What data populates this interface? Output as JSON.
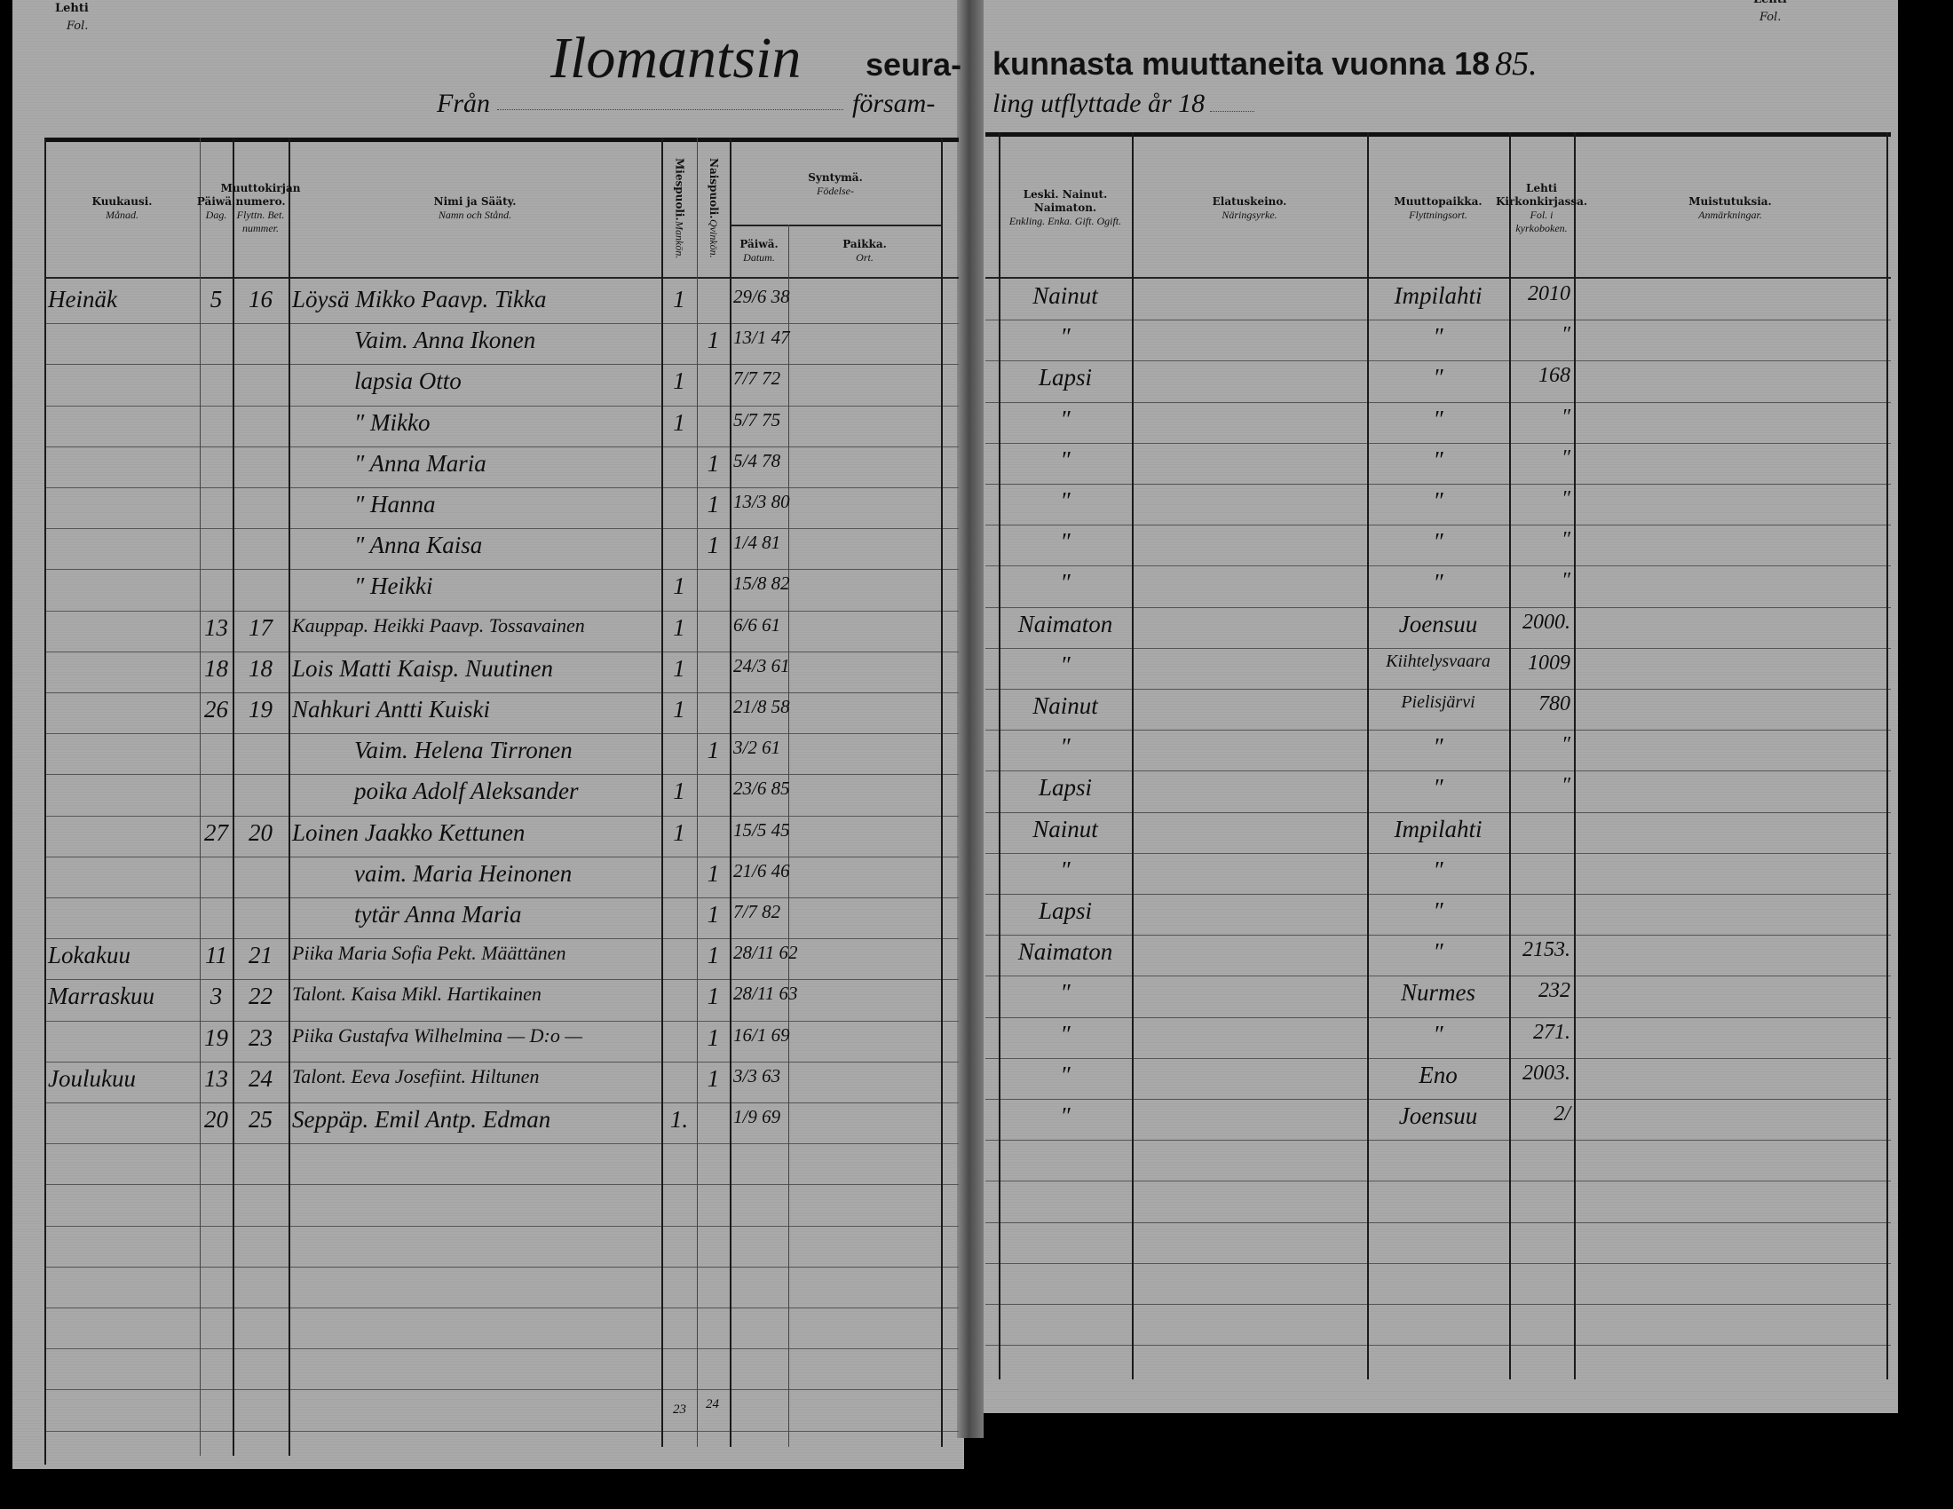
{
  "corner": {
    "lehti": "Lehti",
    "fol": "Fol."
  },
  "title": {
    "parish_handwritten": "Ilomantsin",
    "fi_part1": "seura-",
    "fi_part2": "kunnasta muuttaneita vuonna 18",
    "year_handwritten": "85.",
    "sv_from": "Från",
    "sv_part1": "försam-",
    "sv_part2": "ling utflyttade år 18"
  },
  "headers": {
    "month": {
      "fi": "Kuukausi.",
      "sv": "Månad."
    },
    "day": {
      "fi": "Päiwä.",
      "sv": "Dag."
    },
    "number": {
      "fi": "Muuttokirjan numero.",
      "sv": "Flyttn. Bet. nummer."
    },
    "name": {
      "fi": "Nimi ja Sääty.",
      "sv": "Namn och Stånd."
    },
    "male": {
      "fi": "Miespuoli.",
      "sv": "Mankön."
    },
    "female": {
      "fi": "Naispuoli.",
      "sv": "Qvinkön."
    },
    "birth": {
      "fi": "Syntymä.",
      "sv": "Födelse-"
    },
    "birth_date": {
      "fi": "Päiwä.",
      "sv": "Datum."
    },
    "birth_place": {
      "fi": "Paikka.",
      "sv": "Ort."
    },
    "civil": {
      "fi": "Leski. Nainut. Naimaton.",
      "sv": "Enkling. Enka. Gift. Ogift."
    },
    "occupation": {
      "fi": "Elatuskeino.",
      "sv": "Näringsyrke."
    },
    "destination": {
      "fi": "Muuttopaikka.",
      "sv": "Flyttningsort."
    },
    "folio": {
      "fi": "Lehti Kirkonkirjassa.",
      "sv": "Fol. i kyrkoboken."
    },
    "remarks": {
      "fi": "Muistutuksia.",
      "sv": "Anmärkningar."
    }
  },
  "rows": [
    {
      "month": "Heinäk",
      "day": "5",
      "number": "16",
      "name": "Löysä Mikko Paavp. Tikka",
      "male": "1",
      "female": "",
      "birth_date": "29/6 38",
      "civil": "Nainut",
      "destination": "Impilahti",
      "folio": "2010"
    },
    {
      "month": "",
      "day": "",
      "number": "",
      "name": "Vaim. Anna Ikonen",
      "male": "",
      "female": "1",
      "birth_date": "13/1 47",
      "civil": "″",
      "destination": "″",
      "folio": "″"
    },
    {
      "month": "",
      "day": "",
      "number": "",
      "name": "lapsia Otto",
      "male": "1",
      "female": "",
      "birth_date": "7/7 72",
      "civil": "Lapsi",
      "destination": "″",
      "folio": "168"
    },
    {
      "month": "",
      "day": "",
      "number": "",
      "name": "″ Mikko",
      "male": "1",
      "female": "",
      "birth_date": "5/7 75",
      "civil": "″",
      "destination": "″",
      "folio": "″"
    },
    {
      "month": "",
      "day": "",
      "number": "",
      "name": "″ Anna Maria",
      "male": "",
      "female": "1",
      "birth_date": "5/4 78",
      "civil": "″",
      "destination": "″",
      "folio": "″"
    },
    {
      "month": "",
      "day": "",
      "number": "",
      "name": "″ Hanna",
      "male": "",
      "female": "1",
      "birth_date": "13/3 80",
      "civil": "″",
      "destination": "″",
      "folio": "″"
    },
    {
      "month": "",
      "day": "",
      "number": "",
      "name": "″ Anna Kaisa",
      "male": "",
      "female": "1",
      "birth_date": "1/4 81",
      "civil": "″",
      "destination": "″",
      "folio": "″"
    },
    {
      "month": "",
      "day": "",
      "number": "",
      "name": "″ Heikki",
      "male": "1",
      "female": "",
      "birth_date": "15/8 82",
      "civil": "″",
      "destination": "″",
      "folio": "″"
    },
    {
      "month": "",
      "day": "13",
      "number": "17",
      "name": "Kauppap. Heikki Paavp. Tossavainen",
      "male": "1",
      "female": "",
      "birth_date": "6/6 61",
      "civil": "Naimaton",
      "destination": "Joensuu",
      "folio": "2000."
    },
    {
      "month": "",
      "day": "18",
      "number": "18",
      "name": "Lois Matti Kaisp. Nuutinen",
      "male": "1",
      "female": "",
      "birth_date": "24/3 61",
      "civil": "″",
      "destination": "Kiihtelysvaara",
      "folio": "1009"
    },
    {
      "month": "",
      "day": "26",
      "number": "19",
      "name": "Nahkuri Antti Kuiski",
      "male": "1",
      "female": "",
      "birth_date": "21/8 58",
      "civil": "Nainut",
      "destination": "Pielisjärvi",
      "folio": "780"
    },
    {
      "month": "",
      "day": "",
      "number": "",
      "name": "Vaim. Helena Tirronen",
      "male": "",
      "female": "1",
      "birth_date": "3/2 61",
      "civil": "″",
      "destination": "″",
      "folio": "″"
    },
    {
      "month": "",
      "day": "",
      "number": "",
      "name": "poika Adolf Aleksander",
      "male": "1",
      "female": "",
      "birth_date": "23/6 85",
      "civil": "Lapsi",
      "destination": "″",
      "folio": "″"
    },
    {
      "month": "",
      "day": "27",
      "number": "20",
      "name": "Loinen Jaakko Kettunen",
      "male": "1",
      "female": "",
      "birth_date": "15/5 45",
      "civil": "Nainut",
      "destination": "Impilahti",
      "folio": ""
    },
    {
      "month": "",
      "day": "",
      "number": "",
      "name": "vaim. Maria Heinonen",
      "male": "",
      "female": "1",
      "birth_date": "21/6 46",
      "civil": "″",
      "destination": "″",
      "folio": ""
    },
    {
      "month": "",
      "day": "",
      "number": "",
      "name": "tytär Anna Maria",
      "male": "",
      "female": "1",
      "birth_date": "7/7 82",
      "civil": "Lapsi",
      "destination": "″",
      "folio": ""
    },
    {
      "month": "Lokakuu",
      "day": "11",
      "number": "21",
      "name": "Piika Maria Sofia Pekt. Määttänen",
      "male": "",
      "female": "1",
      "birth_date": "28/11 62",
      "civil": "Naimaton",
      "destination": "″",
      "folio": "2153."
    },
    {
      "month": "Marraskuu",
      "day": "3",
      "number": "22",
      "name": "Talont. Kaisa Mikl. Hartikainen",
      "male": "",
      "female": "1",
      "birth_date": "28/11 63",
      "civil": "″",
      "destination": "Nurmes",
      "folio": "232"
    },
    {
      "month": "",
      "day": "19",
      "number": "23",
      "name": "Piika Gustafva Wilhelmina — D:o —",
      "male": "",
      "female": "1",
      "birth_date": "16/1 69",
      "civil": "″",
      "destination": "″",
      "folio": "271."
    },
    {
      "month": "Joulukuu",
      "day": "13",
      "number": "24",
      "name": "Talont. Eeva Josefiint. Hiltunen",
      "male": "",
      "female": "1",
      "birth_date": "3/3 63",
      "civil": "″",
      "destination": "Eno",
      "folio": "2003."
    },
    {
      "month": "",
      "day": "20",
      "number": "25",
      "name": "Seppäp. Emil Antp. Edman",
      "male": "1.",
      "female": "",
      "birth_date": "1/9 69",
      "civil": "″",
      "destination": "Joensuu",
      "folio": "2/"
    }
  ],
  "totals": {
    "male": "23",
    "female": "24"
  }
}
